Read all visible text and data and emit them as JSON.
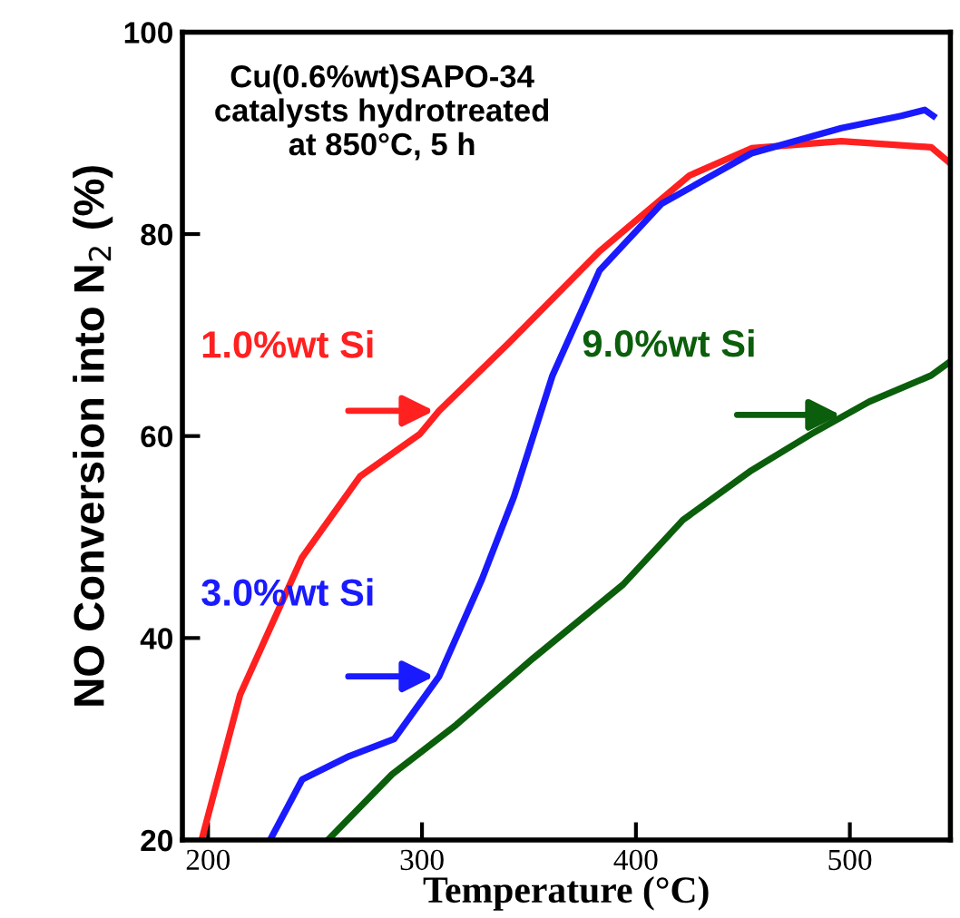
{
  "chart_data": {
    "type": "line",
    "xlabel": "Temperature (°C)",
    "ylabel": "NO Conversion into N$_{2}$ (%)",
    "annotations": [
      "Cu(0.6%wt)SAPO-34\ncatalysts hydrotreated\nat 850°C, 5 h"
    ],
    "xlim": [
      188,
      547
    ],
    "ylim": [
      20,
      100
    ],
    "xticks": [
      200,
      300,
      400,
      500
    ],
    "yticks": [
      20,
      40,
      60,
      80,
      100
    ],
    "grid": false,
    "legend": false,
    "marker": "none",
    "line_style": "solid",
    "series": [
      {
        "name": "1.0%wt Si",
        "color": "#ff2020",
        "x": [
          197,
          215,
          244,
          271,
          299,
          308,
          341,
          383,
          425,
          454,
          496,
          538,
          547
        ],
        "values": [
          20,
          34.4,
          48,
          56,
          60.2,
          62.5,
          69.3,
          78.3,
          85.8,
          88.5,
          89.2,
          88.6,
          87
        ]
      },
      {
        "name": "3.0%wt Si",
        "color": "#1a1aff",
        "x": [
          229,
          244,
          266,
          287,
          308,
          328,
          343,
          361,
          383,
          412,
          454,
          496,
          524,
          535,
          539
        ],
        "values": [
          20,
          26,
          28.3,
          30,
          36.2,
          45.8,
          54,
          66,
          76.4,
          83,
          88,
          90.5,
          91.7,
          92.3,
          91.7
        ]
      },
      {
        "name": "9.0%wt Si",
        "color": "#0b5e0b",
        "x": [
          256,
          286,
          316,
          352,
          394,
          422,
          454,
          482,
          509,
          538,
          547
        ],
        "values": [
          20,
          26.5,
          31.4,
          38,
          45.3,
          51.7,
          56.6,
          60.2,
          63.4,
          66,
          67.4
        ]
      }
    ]
  }
}
